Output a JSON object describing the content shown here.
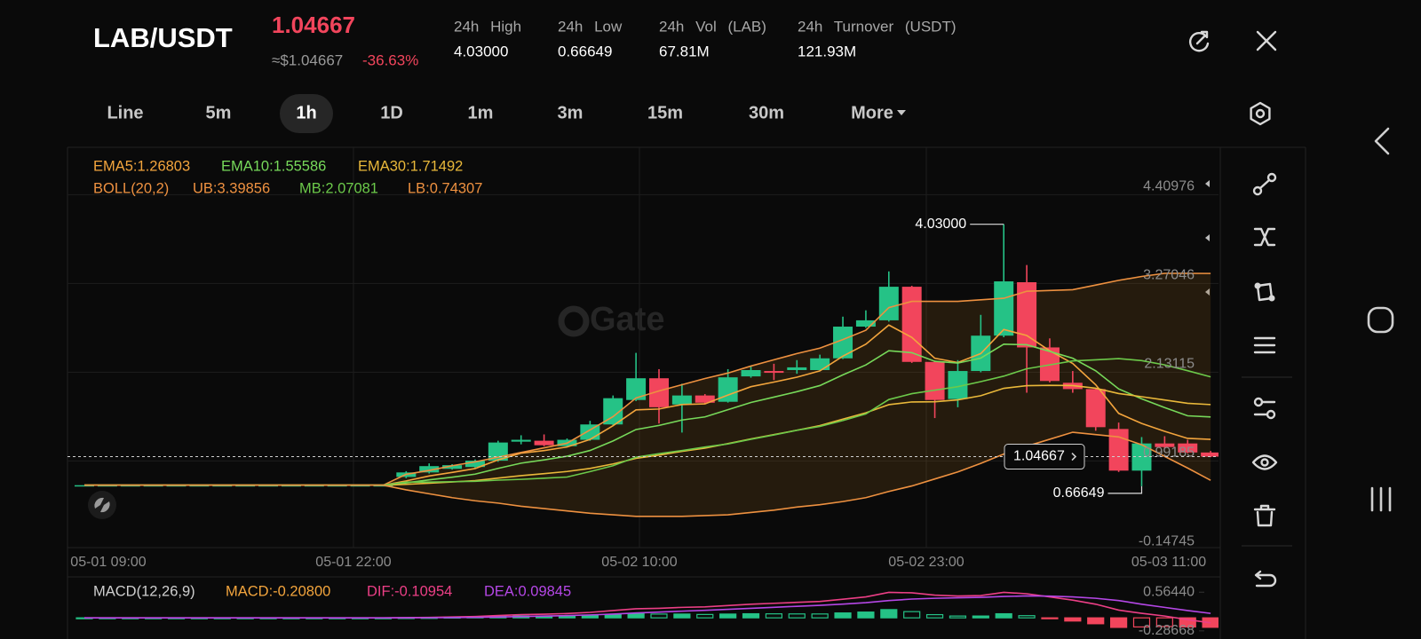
{
  "header": {
    "pair": "LAB/USDT",
    "price": "1.04667",
    "usd_price": "≈$1.04667",
    "change": "-36.63%",
    "stats": [
      {
        "label": "24h High",
        "value": "4.03000"
      },
      {
        "label": "24h Low",
        "value": "0.66649"
      },
      {
        "label": "24h Vol (LAB)",
        "value": "67.81M"
      },
      {
        "label": "24h Turnover (USDT)",
        "value": "121.93M"
      }
    ]
  },
  "tabs": {
    "items": [
      "Line",
      "5m",
      "1h",
      "1D",
      "1m",
      "3m",
      "15m",
      "30m",
      "More"
    ],
    "active": "1h"
  },
  "watermark": "Gate",
  "chart_data": [
    {
      "type": "candlestick",
      "x_labels": [
        "05-01 09:00",
        "05-01 22:00",
        "05-02 10:00",
        "05-02 23:00",
        "05-03 11:00"
      ],
      "open": [
        0.68,
        0.68,
        0.68,
        0.68,
        0.68,
        0.68,
        0.68,
        0.68,
        0.68,
        0.68,
        0.68,
        0.68,
        0.68,
        0.68,
        0.786,
        0.844,
        0.89,
        0.914,
        0.995,
        1.239,
        1.251,
        1.181,
        1.263,
        1.46,
        1.774,
        2.053,
        1.716,
        1.832,
        1.751,
        2.077,
        2.146,
        2.158,
        2.158,
        2.309,
        2.716,
        2.797,
        3.228,
        2.263,
        1.786,
        2.146,
        2.6,
        3.286,
        2.449,
        1.995,
        1.914,
        1.402,
        0.867,
        1.216,
        1.216,
        1.1
      ],
      "high": [
        0.68,
        0.68,
        0.68,
        0.68,
        0.68,
        0.68,
        0.68,
        0.68,
        0.68,
        0.68,
        0.68,
        0.68,
        0.68,
        0.68,
        0.86,
        0.96,
        0.95,
        1.01,
        1.251,
        1.321,
        1.332,
        1.28,
        1.507,
        1.832,
        2.379,
        2.17,
        1.983,
        1.85,
        2.17,
        2.204,
        2.239,
        2.286,
        2.356,
        2.844,
        2.925,
        3.425,
        3.24,
        2.28,
        2.286,
        2.867,
        4.03,
        3.507,
        2.565,
        2.146,
        1.93,
        1.484,
        1.298,
        1.309,
        1.263,
        1.12
      ],
      "low": [
        0.68,
        0.68,
        0.68,
        0.68,
        0.68,
        0.68,
        0.68,
        0.68,
        0.68,
        0.68,
        0.68,
        0.68,
        0.68,
        0.68,
        0.77,
        0.83,
        0.88,
        0.9,
        0.98,
        1.205,
        1.18,
        1.17,
        1.25,
        1.45,
        1.76,
        1.472,
        1.356,
        1.72,
        1.74,
        2.06,
        2.03,
        2.111,
        2.15,
        2.3,
        2.7,
        2.78,
        2.25,
        1.542,
        1.681,
        2.13,
        2.58,
        1.867,
        2.0,
        1.867,
        1.379,
        0.85,
        0.66649,
        1.15,
        1.09,
        1.04
      ],
      "close": [
        0.68,
        0.68,
        0.68,
        0.68,
        0.68,
        0.68,
        0.68,
        0.68,
        0.68,
        0.68,
        0.68,
        0.68,
        0.68,
        0.68,
        0.844,
        0.925,
        0.937,
        0.995,
        1.228,
        1.263,
        1.193,
        1.263,
        1.46,
        1.797,
        2.053,
        1.681,
        1.832,
        1.739,
        2.065,
        2.158,
        2.123,
        2.193,
        2.309,
        2.716,
        2.797,
        3.228,
        2.263,
        1.774,
        2.146,
        2.6,
        3.297,
        2.449,
        2.018,
        1.914,
        1.425,
        0.867,
        1.216,
        1.17,
        1.1,
        1.04667
      ],
      "up_color": "#25c286",
      "down_color": "#f2455c",
      "indicator_title": "BOLL(20,2)",
      "indicator_title_color": "#ee9140",
      "band_color": "#8a5a1c",
      "series": [
        {
          "name": "EMA5:1.26803",
          "color": "#f3a53d",
          "values": [
            0.68,
            0.68,
            0.68,
            0.68,
            0.68,
            0.68,
            0.68,
            0.68,
            0.68,
            0.68,
            0.68,
            0.68,
            0.68,
            0.68,
            0.735,
            0.798,
            0.844,
            0.894,
            1.005,
            1.091,
            1.125,
            1.171,
            1.267,
            1.444,
            1.647,
            1.658,
            1.716,
            1.724,
            1.838,
            1.945,
            2.004,
            2.067,
            2.148,
            2.337,
            2.49,
            2.736,
            2.578,
            2.31,
            2.255,
            2.37,
            2.679,
            2.602,
            2.407,
            2.243,
            1.97,
            1.602,
            1.473,
            1.372,
            1.281,
            1.26803
          ]
        },
        {
          "name": "EMA10:1.55586",
          "color": "#77d95a",
          "values": [
            0.68,
            0.68,
            0.68,
            0.68,
            0.68,
            0.68,
            0.68,
            0.68,
            0.68,
            0.68,
            0.68,
            0.68,
            0.68,
            0.68,
            0.71,
            0.749,
            0.783,
            0.822,
            0.896,
            0.963,
            1.005,
            1.052,
            1.126,
            1.248,
            1.395,
            1.447,
            1.517,
            1.557,
            1.649,
            1.742,
            1.811,
            1.881,
            1.959,
            2.097,
            2.224,
            2.407,
            2.381,
            2.271,
            2.248,
            2.312,
            2.491,
            2.483,
            2.398,
            2.31,
            2.149,
            1.916,
            1.789,
            1.676,
            1.571,
            1.55586
          ]
        },
        {
          "name": "EMA30:1.71492",
          "color": "#e9b83a",
          "values": [
            0.68,
            0.68,
            0.68,
            0.68,
            0.68,
            0.68,
            0.68,
            0.68,
            0.68,
            0.68,
            0.68,
            0.68,
            0.68,
            0.68,
            0.691,
            0.706,
            0.721,
            0.739,
            0.771,
            0.803,
            0.828,
            0.856,
            0.895,
            0.953,
            1.024,
            1.066,
            1.115,
            1.155,
            1.214,
            1.275,
            1.33,
            1.386,
            1.446,
            1.528,
            1.61,
            1.714,
            1.749,
            1.751,
            1.776,
            1.829,
            1.924,
            1.958,
            1.962,
            1.959,
            1.925,
            1.857,
            1.816,
            1.774,
            1.731,
            1.71492
          ]
        },
        {
          "name": "UB:3.39856",
          "color": "#ee9140",
          "values": [
            0.68,
            0.68,
            0.68,
            0.68,
            0.68,
            0.68,
            0.68,
            0.68,
            0.68,
            0.68,
            0.68,
            0.68,
            0.68,
            0.68,
            0.82,
            0.87,
            0.93,
            0.98,
            1.04,
            1.1,
            1.16,
            1.22,
            1.39,
            1.56,
            1.8,
            1.89,
            1.97,
            2.05,
            2.12,
            2.21,
            2.29,
            2.37,
            2.44,
            2.55,
            2.67,
            2.96,
            3.04,
            3.04,
            3.04,
            3.06,
            3.08,
            3.17,
            3.18,
            3.19,
            3.25,
            3.31,
            3.36,
            3.4,
            3.4,
            3.39856
          ]
        },
        {
          "name": "MB:2.07081",
          "color": "#6cc94a",
          "values": [
            0.68,
            0.68,
            0.68,
            0.68,
            0.68,
            0.68,
            0.68,
            0.68,
            0.68,
            0.68,
            0.68,
            0.68,
            0.68,
            0.68,
            0.72,
            0.72,
            0.725,
            0.73,
            0.745,
            0.755,
            0.77,
            0.785,
            0.855,
            0.93,
            1.04,
            1.085,
            1.125,
            1.17,
            1.21,
            1.27,
            1.325,
            1.385,
            1.435,
            1.51,
            1.595,
            1.78,
            1.855,
            1.9,
            1.945,
            2.01,
            2.08,
            2.175,
            2.225,
            2.275,
            2.29,
            2.305,
            2.28,
            2.225,
            2.15,
            2.07081
          ]
        },
        {
          "name": "LB:0.74307",
          "color": "#ee9140",
          "values": [
            0.68,
            0.68,
            0.68,
            0.68,
            0.68,
            0.68,
            0.68,
            0.68,
            0.68,
            0.68,
            0.68,
            0.68,
            0.68,
            0.68,
            0.62,
            0.57,
            0.52,
            0.48,
            0.45,
            0.41,
            0.38,
            0.35,
            0.32,
            0.3,
            0.28,
            0.28,
            0.28,
            0.29,
            0.3,
            0.33,
            0.36,
            0.4,
            0.43,
            0.47,
            0.52,
            0.6,
            0.67,
            0.76,
            0.85,
            0.96,
            1.08,
            1.18,
            1.27,
            1.36,
            1.33,
            1.3,
            1.2,
            1.05,
            0.9,
            0.74307
          ]
        }
      ],
      "ylim": [
        -0.121,
        5.018
      ],
      "yticks": [
        4.40976,
        3.27046,
        2.13115,
        0.99185,
        -0.14745
      ],
      "grid": true,
      "high_label": {
        "value": 4.03,
        "label": "4.03000"
      },
      "low_label": 0.66649,
      "last_price": 1.04667
    },
    {
      "type": "macd",
      "title": "MACD(12,26,9)",
      "series": [
        {
          "name": "MACD:-0.20800",
          "type": "bar",
          "color": "#f3a53d",
          "values": [
            0,
            0,
            0,
            0,
            0,
            0,
            0,
            0,
            0,
            0,
            0,
            0,
            0,
            0,
            0.004,
            0.007,
            0.014,
            0.019,
            0.031,
            0.041,
            0.041,
            0.045,
            0.056,
            0.077,
            0.094,
            0.083,
            0.083,
            0.074,
            0.083,
            0.09,
            0.088,
            0.086,
            0.085,
            0.108,
            0.127,
            0.181,
            0.137,
            0.07,
            0.04,
            0.04,
            0.09,
            0.048,
            -0.018,
            -0.07,
            -0.13,
            -0.21,
            -0.2,
            -0.19,
            -0.2,
            -0.208
          ]
        },
        {
          "name": "DIF:-0.10954",
          "type": "line",
          "color": "#ec3f86",
          "values": [
            0,
            0,
            0,
            0,
            0,
            0,
            0,
            0,
            0,
            0,
            0,
            0,
            0,
            0,
            0.005,
            0.01,
            0.02,
            0.03,
            0.05,
            0.07,
            0.08,
            0.095,
            0.12,
            0.16,
            0.2,
            0.21,
            0.23,
            0.24,
            0.27,
            0.3,
            0.32,
            0.34,
            0.36,
            0.41,
            0.46,
            0.56,
            0.55,
            0.5,
            0.48,
            0.49,
            0.56,
            0.53,
            0.46,
            0.39,
            0.3,
            0.17,
            0.1,
            0.04,
            -0.04,
            -0.10954
          ]
        },
        {
          "name": "DEA:0.09845",
          "type": "line",
          "color": "#b547e6",
          "values": [
            0,
            0,
            0,
            0,
            0,
            0,
            0,
            0,
            0,
            0,
            0,
            0,
            0,
            0,
            0.001,
            0.003,
            0.006,
            0.011,
            0.019,
            0.029,
            0.039,
            0.05,
            0.064,
            0.083,
            0.106,
            0.127,
            0.147,
            0.166,
            0.187,
            0.21,
            0.232,
            0.254,
            0.275,
            0.302,
            0.333,
            0.379,
            0.413,
            0.43,
            0.44,
            0.45,
            0.47,
            0.482,
            0.478,
            0.46,
            0.43,
            0.38,
            0.3,
            0.23,
            0.16,
            0.09845
          ]
        }
      ],
      "up_color": "#25c286",
      "down_color": "#f2455c",
      "ylim": [
        -0.465,
        0.842
      ],
      "yticks": [
        {
          "value": 0.5644,
          "label": "0.56440"
        },
        -0.28668
      ]
    }
  ]
}
